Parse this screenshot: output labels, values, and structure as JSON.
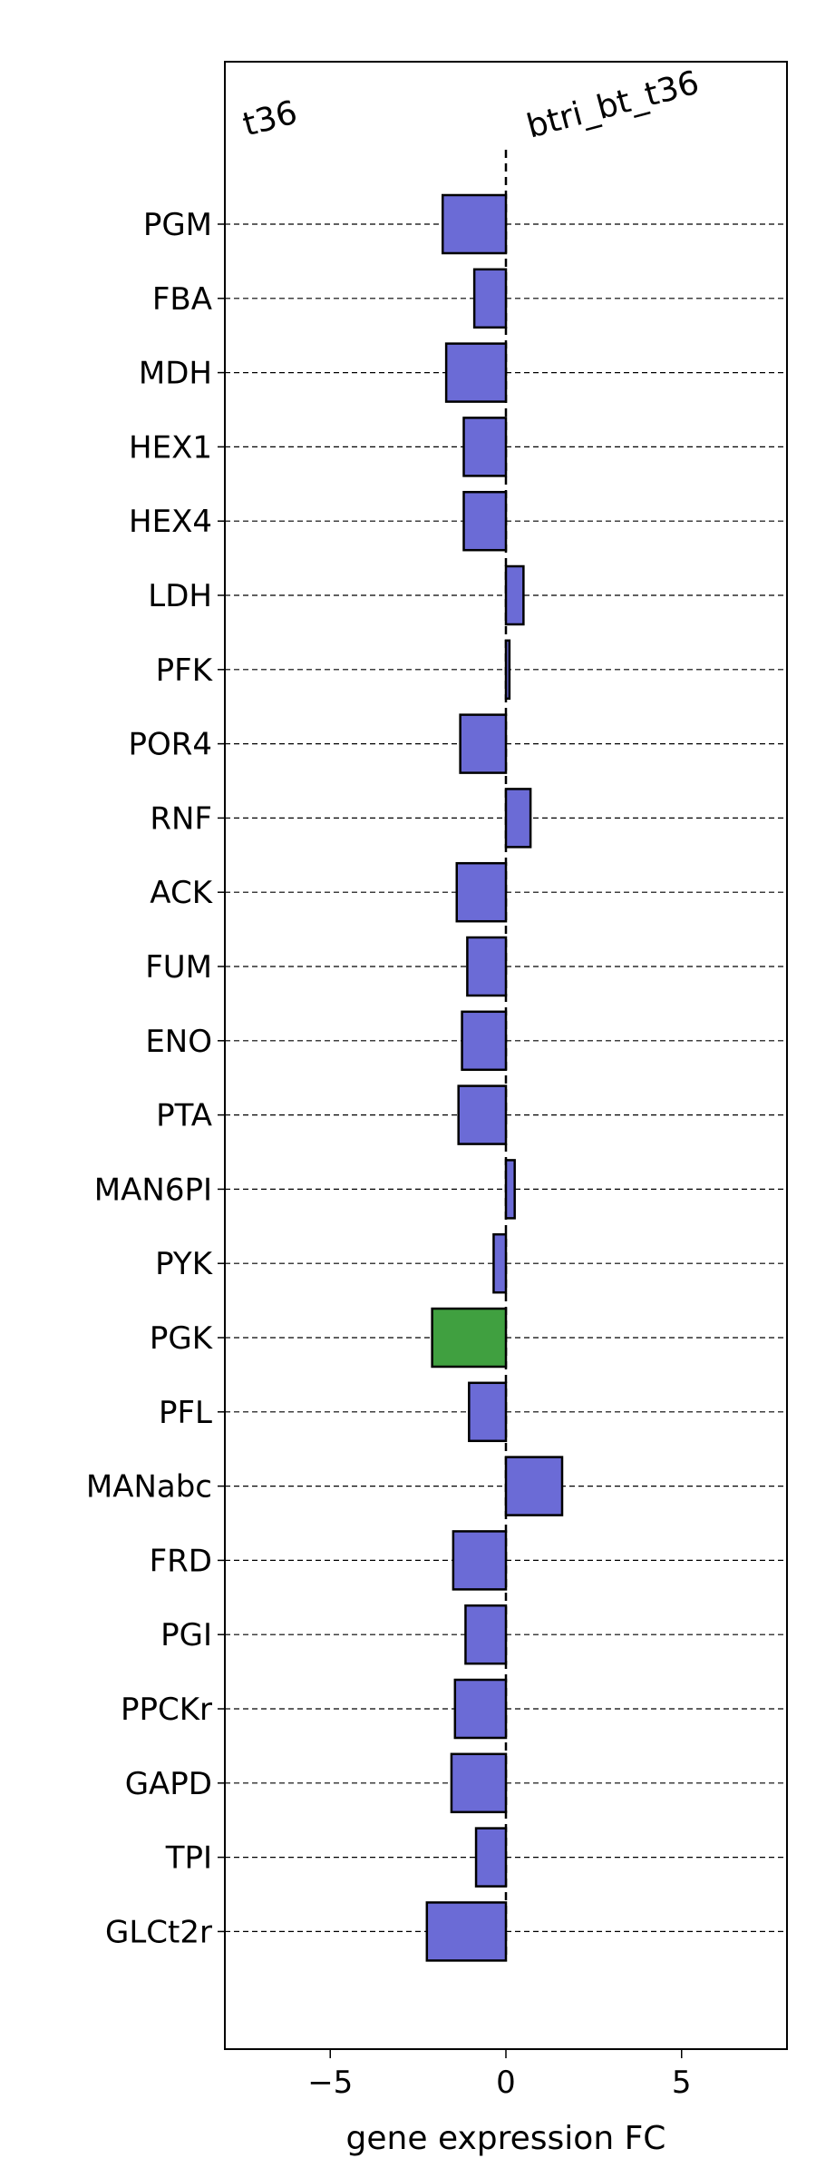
{
  "chart_data": {
    "type": "bar",
    "orientation": "horizontal",
    "title": "",
    "xlabel": "gene expression FC",
    "ylabel": "",
    "xlim": [
      -8,
      8
    ],
    "xticks": [
      -5,
      0,
      5
    ],
    "xtick_labels": [
      "−5",
      "0",
      "5"
    ],
    "corner_labels": {
      "left": "t36",
      "right": "btri_bt_t36"
    },
    "categories": [
      "PGM",
      "FBA",
      "MDH",
      "HEX1",
      "HEX4",
      "LDH",
      "PFK",
      "POR4",
      "RNF",
      "ACK",
      "FUM",
      "ENO",
      "PTA",
      "MAN6PI",
      "PYK",
      "PGK",
      "PFL",
      "MANabc",
      "FRD",
      "PGI",
      "PPCKr",
      "GAPD",
      "TPI",
      "GLCt2r"
    ],
    "values": [
      -1.8,
      -0.9,
      -1.7,
      -1.2,
      -1.2,
      0.5,
      0.1,
      -1.3,
      0.7,
      -1.4,
      -1.1,
      -1.25,
      -1.35,
      0.25,
      -0.35,
      -2.1,
      -1.05,
      1.6,
      -1.5,
      -1.15,
      -1.45,
      -1.55,
      -0.85,
      -2.25
    ],
    "bar_colors": [
      "#6b6bd6",
      "#6b6bd6",
      "#6b6bd6",
      "#6b6bd6",
      "#6b6bd6",
      "#6b6bd6",
      "#6b6bd6",
      "#6b6bd6",
      "#6b6bd6",
      "#6b6bd6",
      "#6b6bd6",
      "#6b6bd6",
      "#6b6bd6",
      "#6b6bd6",
      "#6b6bd6",
      "#40a040",
      "#6b6bd6",
      "#6b6bd6",
      "#6b6bd6",
      "#6b6bd6",
      "#6b6bd6",
      "#6b6bd6",
      "#6b6bd6",
      "#6b6bd6"
    ],
    "grid": "horizontal-dashed",
    "zero_line": "dashed-vertical"
  }
}
